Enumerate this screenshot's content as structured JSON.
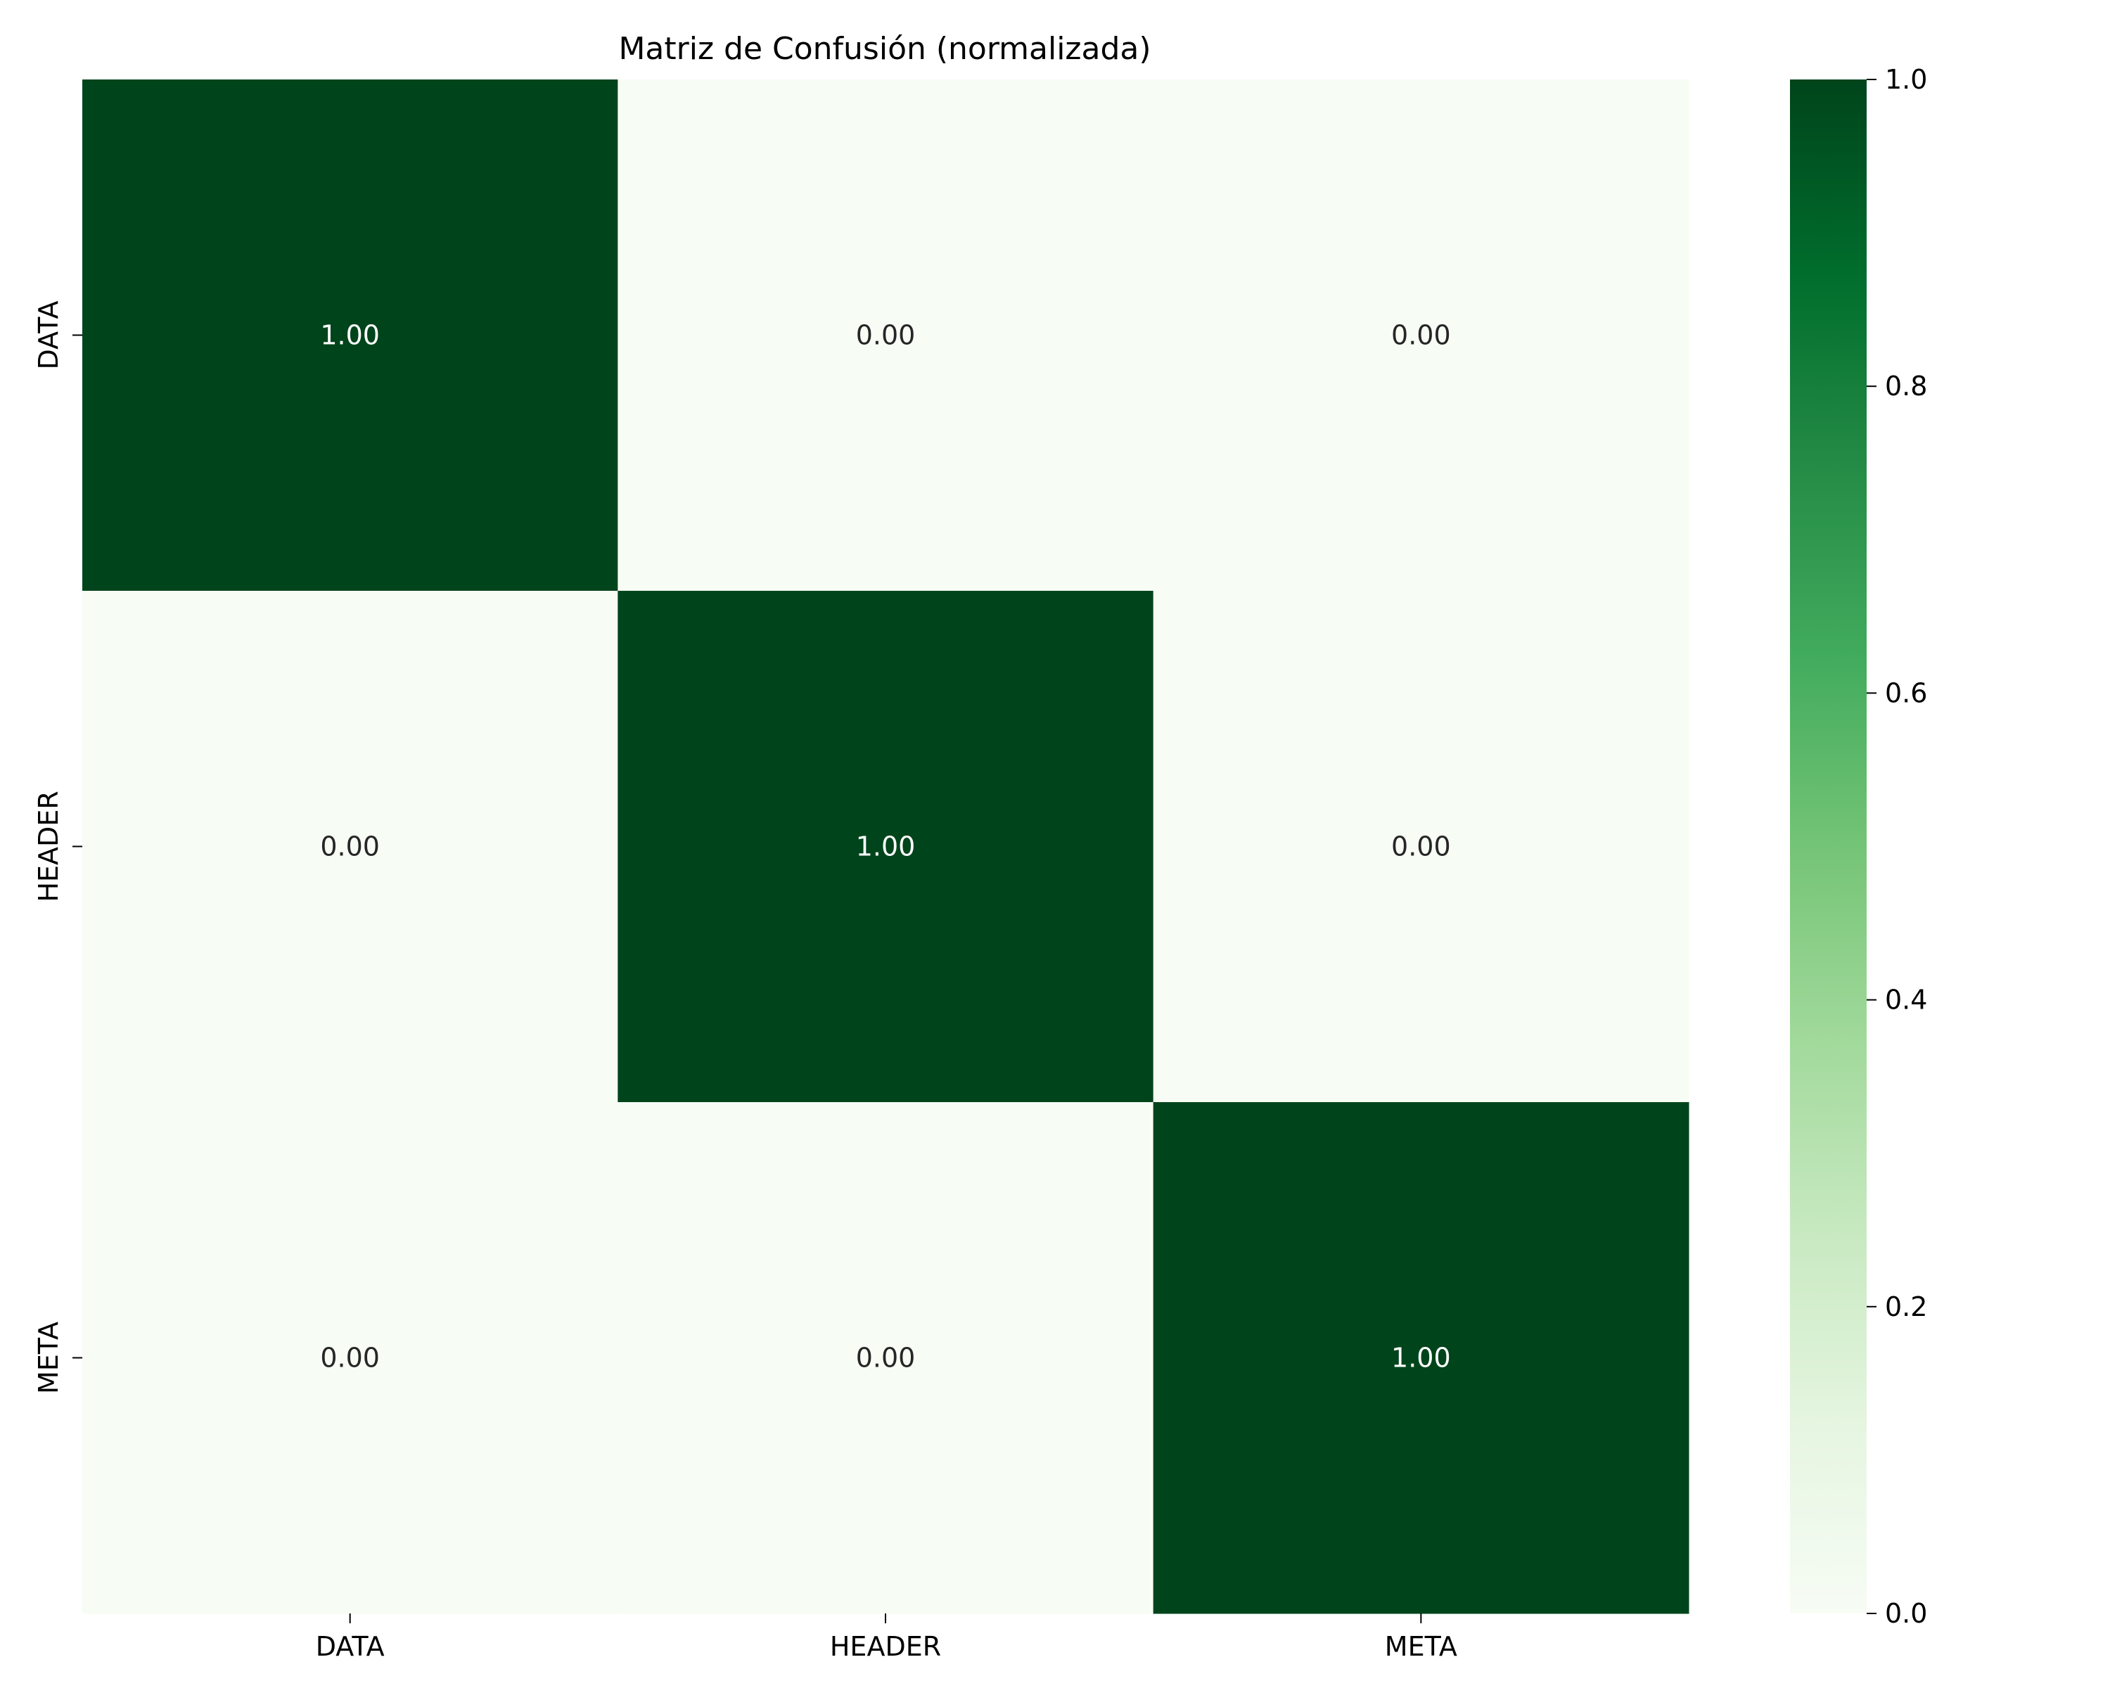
{
  "chart_data": {
    "type": "heatmap",
    "title": "Matriz de Confusión (normalizada)",
    "xlabel": "",
    "ylabel": "",
    "x_categories": [
      "DATA",
      "HEADER",
      "META"
    ],
    "y_categories": [
      "DATA",
      "HEADER",
      "META"
    ],
    "values": [
      [
        1.0,
        0.0,
        0.0
      ],
      [
        0.0,
        1.0,
        0.0
      ],
      [
        0.0,
        0.0,
        1.0
      ]
    ],
    "cell_labels": [
      [
        "1.00",
        "0.00",
        "0.00"
      ],
      [
        "0.00",
        "1.00",
        "0.00"
      ],
      [
        "0.00",
        "0.00",
        "1.00"
      ]
    ],
    "colorbar": {
      "range": [
        0.0,
        1.0
      ],
      "ticks": [
        0.0,
        0.2,
        0.4,
        0.6,
        0.8,
        1.0
      ],
      "tick_labels": [
        "0.0",
        "0.2",
        "0.4",
        "0.6",
        "0.8",
        "1.0"
      ]
    },
    "colormap": "Greens",
    "colors": {
      "low": "#f7fcf5",
      "high": "#00441b",
      "text_on_dark": "#ffffff",
      "text_on_light": "#262626"
    }
  }
}
